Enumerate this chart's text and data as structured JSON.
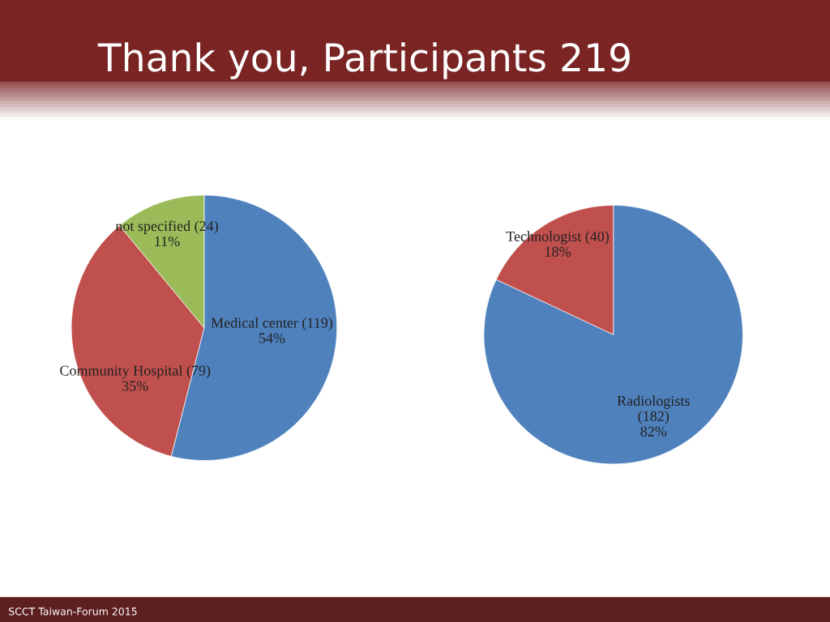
{
  "chart_data": [
    {
      "type": "pie",
      "title": "Thank you, Participants 219",
      "categories": [
        "Medical center (119)",
        "Community Hospital (79)",
        "not specified (24)"
      ],
      "values": [
        54,
        35,
        11
      ],
      "value_labels": [
        "54%",
        "35%",
        "11%"
      ],
      "colors": [
        "#4f81bd",
        "#c0504d",
        "#9bbb59"
      ]
    },
    {
      "type": "pie",
      "categories": [
        "Radiologists\n(182)",
        "Technologist (40)"
      ],
      "values": [
        82,
        18
      ],
      "value_labels": [
        "82%",
        "18%"
      ],
      "colors": [
        "#4f81bd",
        "#c0504d"
      ],
      "annotations": [
        "SCCT Taiwan-Forum 2015"
      ]
    }
  ]
}
